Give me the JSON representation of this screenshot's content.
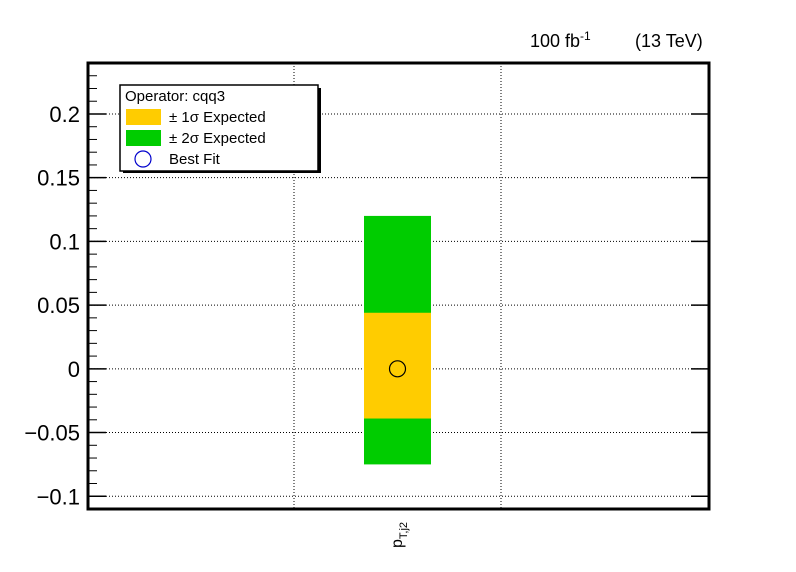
{
  "header": {
    "lumi_value": "100 fb",
    "lumi_exponent": "-1",
    "energy": "(13 TeV)"
  },
  "yaxis_title": "",
  "colors": {
    "one_sigma": "#ffcc00",
    "two_sigma": "#00cc00",
    "best_fit_marker": "#0000cc",
    "point_marker": "#000000"
  },
  "legend": {
    "title": "Operator: cqq3",
    "entries": [
      {
        "label": "± 1σ Expected",
        "kind": "one-sigma"
      },
      {
        "label": "± 2σ Expected",
        "kind": "two-sigma"
      },
      {
        "label": "Best Fit",
        "kind": "best-fit"
      }
    ]
  },
  "chart_data": {
    "type": "bar",
    "categories": [
      "p_T,j2"
    ],
    "category_label_main": "p",
    "category_label_sub": "T,j2",
    "ylim": [
      -0.11,
      0.24
    ],
    "yticks": [
      -0.1,
      -0.05,
      0,
      0.05,
      0.1,
      0.15,
      0.2
    ],
    "ytick_labels": [
      "−0.1",
      "−0.05",
      "0",
      "0.05",
      "0.1",
      "0.15",
      "0.2"
    ],
    "grid": true,
    "legend_position": "top-left",
    "series": [
      {
        "name": "± 2σ Expected",
        "low": [
          -0.075
        ],
        "high": [
          0.12
        ]
      },
      {
        "name": "± 1σ Expected",
        "low": [
          -0.039
        ],
        "high": [
          0.044
        ]
      },
      {
        "name": "Best Fit",
        "values": [
          0.0
        ]
      }
    ]
  }
}
